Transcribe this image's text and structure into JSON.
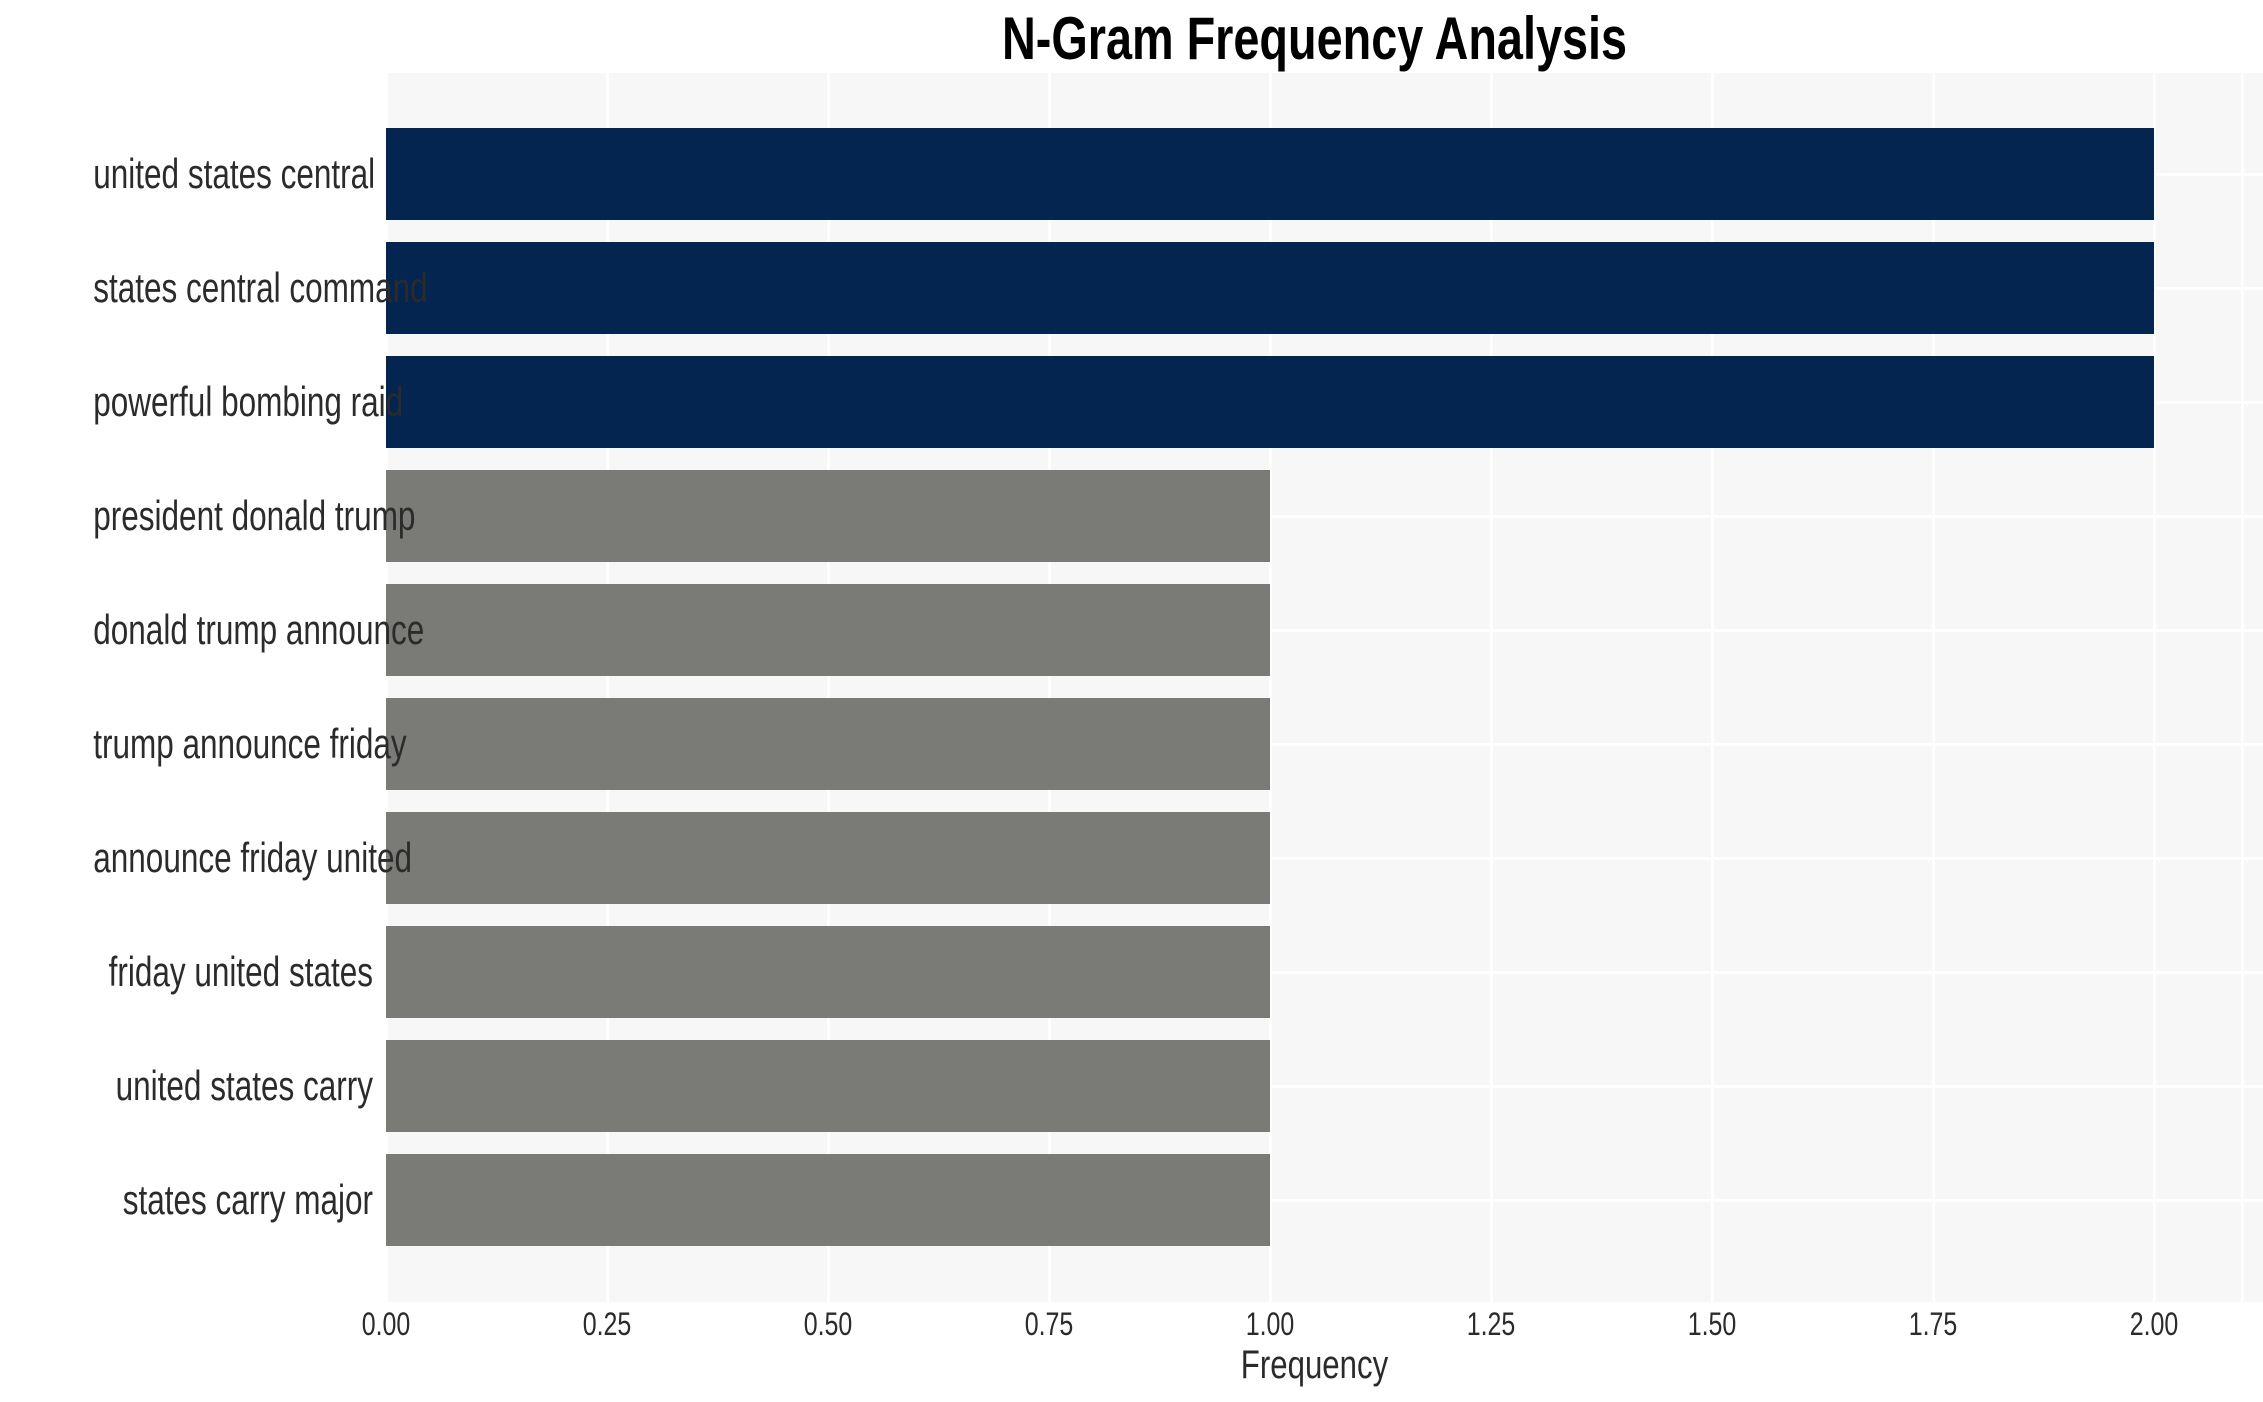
{
  "chart_data": {
    "type": "bar",
    "orientation": "horizontal",
    "title": "N-Gram Frequency Analysis",
    "xlabel": "Frequency",
    "ylabel": "",
    "categories": [
      "united states central",
      "states central command",
      "powerful bombing raid",
      "president donald trump",
      "donald trump announce",
      "trump announce friday",
      "announce friday united",
      "friday united states",
      "united states carry",
      "states carry major"
    ],
    "values": [
      2,
      2,
      2,
      1,
      1,
      1,
      1,
      1,
      1,
      1
    ],
    "bar_colors": [
      "#032550",
      "#032550",
      "#032550",
      "#7a7a76",
      "#7a7a76",
      "#7a7a76",
      "#7a7a76",
      "#7a7a76",
      "#7a7a76",
      "#7a7a76"
    ],
    "xlim": [
      0,
      2.1
    ],
    "xticks": [
      0,
      0.25,
      0.5,
      0.75,
      1.0,
      1.25,
      1.5,
      1.75,
      2.0
    ],
    "xtick_labels": [
      "0.00",
      "0.25",
      "0.50",
      "0.75",
      "1.00",
      "1.25",
      "1.50",
      "1.75",
      "2.00"
    ],
    "grid": true,
    "legend": false,
    "plot_bg": "#f7f7f7",
    "grid_color": "#ffffff",
    "figure_bg": "#ffffff",
    "highlight_color": "#032550",
    "base_color": "#7a7a76",
    "text_color": "#2b2b2b"
  }
}
